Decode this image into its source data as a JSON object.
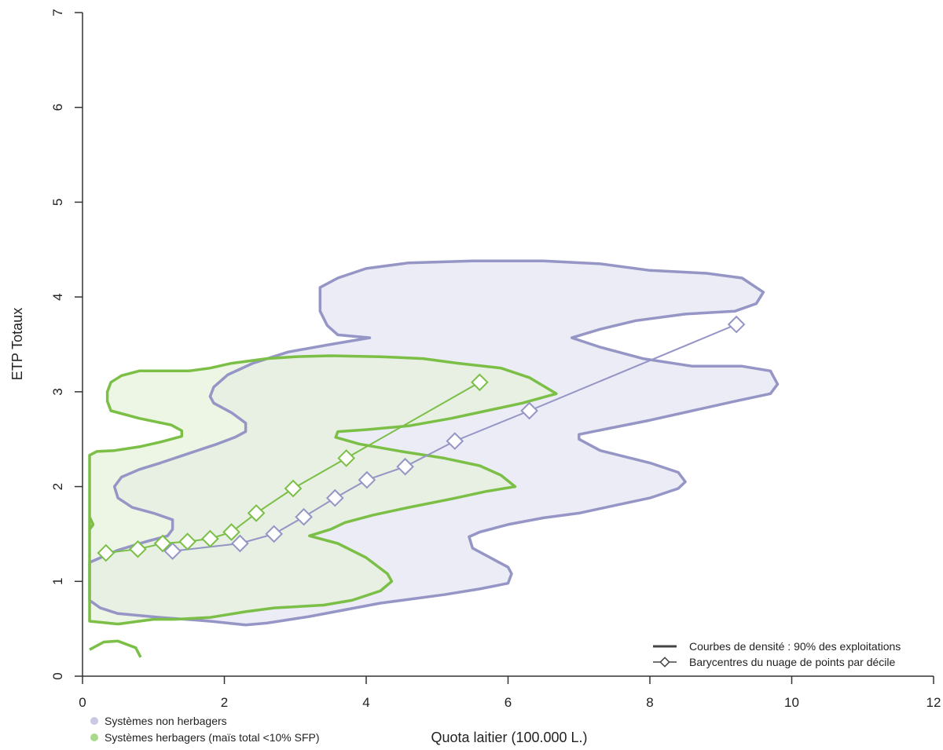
{
  "chart_data": {
    "type": "scatter",
    "xlabel": "Quota laitier (100.000 L.)",
    "ylabel": "ETP Totaux",
    "xlim": [
      0,
      12
    ],
    "ylim": [
      0,
      7
    ],
    "xticks": [
      0,
      2,
      4,
      6,
      8,
      10,
      12
    ],
    "yticks": [
      0,
      1,
      2,
      3,
      4,
      5,
      6,
      7
    ],
    "grid": false,
    "colors": {
      "non_herbagers_line": "#9595c6",
      "non_herbagers_fill": "#ececf6",
      "herbagers_line": "#7bbf47",
      "herbagers_fill": "#e6f2da",
      "overlap_fill": "#dfe6dc",
      "axis": "#333333"
    },
    "series": [
      {
        "name": "Systèmes non herbagers",
        "key": "non_herbagers",
        "barycentres": {
          "x": [
            1.27,
            2.22,
            2.7,
            3.12,
            3.56,
            4.01,
            4.55,
            5.25,
            6.3,
            9.22
          ],
          "y": [
            1.32,
            1.4,
            1.5,
            1.68,
            1.88,
            2.07,
            2.21,
            2.48,
            2.8,
            3.71
          ]
        },
        "density_contours": [
          [
            [
              0.1,
              1.2
            ],
            [
              0.5,
              1.33
            ],
            [
              0.9,
              1.42
            ],
            [
              1.2,
              1.48
            ],
            [
              1.27,
              1.55
            ],
            [
              1.27,
              1.65
            ],
            [
              1.0,
              1.72
            ],
            [
              0.7,
              1.78
            ],
            [
              0.5,
              1.88
            ],
            [
              0.45,
              2.0
            ],
            [
              0.55,
              2.1
            ],
            [
              0.8,
              2.18
            ],
            [
              1.1,
              2.25
            ],
            [
              1.5,
              2.35
            ],
            [
              1.9,
              2.45
            ],
            [
              2.15,
              2.52
            ],
            [
              2.3,
              2.58
            ],
            [
              2.3,
              2.67
            ],
            [
              2.1,
              2.78
            ],
            [
              1.85,
              2.88
            ],
            [
              1.8,
              2.95
            ],
            [
              1.85,
              3.05
            ],
            [
              2.05,
              3.18
            ],
            [
              2.4,
              3.3
            ],
            [
              2.9,
              3.42
            ],
            [
              3.5,
              3.5
            ],
            [
              4.05,
              3.57
            ],
            [
              3.6,
              3.6
            ],
            [
              3.45,
              3.7
            ],
            [
              3.35,
              3.85
            ],
            [
              3.35,
              4.1
            ],
            [
              3.6,
              4.2
            ],
            [
              4.0,
              4.3
            ],
            [
              4.6,
              4.36
            ],
            [
              5.5,
              4.38
            ],
            [
              6.5,
              4.38
            ],
            [
              7.3,
              4.35
            ],
            [
              8.0,
              4.28
            ],
            [
              8.8,
              4.25
            ],
            [
              9.3,
              4.2
            ],
            [
              9.6,
              4.05
            ],
            [
              9.5,
              3.93
            ],
            [
              9.2,
              3.85
            ],
            [
              8.5,
              3.82
            ],
            [
              7.8,
              3.75
            ],
            [
              7.3,
              3.66
            ],
            [
              6.9,
              3.57
            ],
            [
              7.3,
              3.47
            ],
            [
              7.9,
              3.35
            ],
            [
              8.6,
              3.27
            ],
            [
              9.3,
              3.27
            ],
            [
              9.7,
              3.22
            ],
            [
              9.8,
              3.08
            ],
            [
              9.7,
              2.98
            ],
            [
              9.2,
              2.9
            ],
            [
              8.6,
              2.8
            ],
            [
              8.0,
              2.7
            ],
            [
              7.4,
              2.61
            ],
            [
              7.0,
              2.55
            ],
            [
              7.0,
              2.5
            ],
            [
              7.3,
              2.38
            ],
            [
              8.0,
              2.25
            ],
            [
              8.4,
              2.15
            ],
            [
              8.5,
              2.05
            ],
            [
              8.4,
              1.98
            ],
            [
              8.0,
              1.88
            ],
            [
              7.5,
              1.8
            ],
            [
              7.0,
              1.72
            ],
            [
              6.5,
              1.67
            ],
            [
              6.0,
              1.6
            ],
            [
              5.6,
              1.52
            ],
            [
              5.45,
              1.47
            ],
            [
              5.5,
              1.35
            ],
            [
              5.75,
              1.25
            ],
            [
              6.0,
              1.15
            ],
            [
              6.05,
              1.08
            ],
            [
              6.0,
              0.98
            ],
            [
              5.6,
              0.92
            ],
            [
              5.1,
              0.86
            ],
            [
              4.7,
              0.82
            ],
            [
              4.2,
              0.77
            ],
            [
              3.7,
              0.7
            ],
            [
              3.2,
              0.63
            ],
            [
              2.6,
              0.56
            ],
            [
              2.3,
              0.54
            ],
            [
              1.8,
              0.58
            ],
            [
              1.1,
              0.62
            ],
            [
              0.5,
              0.66
            ],
            [
              0.25,
              0.72
            ],
            [
              0.1,
              0.8
            ]
          ]
        ]
      },
      {
        "name": "Systèmes herbagers (maïs total <10% SFP)",
        "key": "herbagers",
        "barycentres": {
          "x": [
            0.33,
            0.78,
            1.13,
            1.48,
            1.8,
            2.1,
            2.45,
            2.97,
            3.72,
            5.6
          ],
          "y": [
            1.3,
            1.34,
            1.4,
            1.42,
            1.45,
            1.52,
            1.72,
            1.98,
            2.3,
            3.1
          ]
        },
        "density_contours": [
          [
            [
              0.1,
              2.33
            ],
            [
              0.2,
              2.37
            ],
            [
              0.45,
              2.38
            ],
            [
              0.8,
              2.42
            ],
            [
              1.1,
              2.47
            ],
            [
              1.4,
              2.53
            ],
            [
              1.4,
              2.59
            ],
            [
              1.25,
              2.65
            ],
            [
              0.8,
              2.72
            ],
            [
              0.4,
              2.8
            ],
            [
              0.35,
              2.9
            ],
            [
              0.35,
              3.0
            ],
            [
              0.4,
              3.1
            ],
            [
              0.55,
              3.17
            ],
            [
              0.8,
              3.22
            ],
            [
              1.5,
              3.22
            ],
            [
              1.8,
              3.25
            ],
            [
              2.1,
              3.3
            ],
            [
              2.6,
              3.35
            ],
            [
              3.0,
              3.37
            ],
            [
              3.5,
              3.38
            ],
            [
              4.2,
              3.37
            ],
            [
              4.8,
              3.35
            ],
            [
              5.3,
              3.3
            ],
            [
              5.9,
              3.25
            ],
            [
              6.3,
              3.15
            ],
            [
              6.68,
              2.98
            ],
            [
              6.2,
              2.88
            ],
            [
              5.7,
              2.8
            ],
            [
              5.2,
              2.72
            ],
            [
              4.6,
              2.64
            ],
            [
              4.0,
              2.6
            ],
            [
              3.6,
              2.58
            ],
            [
              3.57,
              2.52
            ],
            [
              3.9,
              2.45
            ],
            [
              4.5,
              2.37
            ],
            [
              5.1,
              2.3
            ],
            [
              5.6,
              2.22
            ],
            [
              5.9,
              2.12
            ],
            [
              6.1,
              2.0
            ],
            [
              5.7,
              1.95
            ],
            [
              5.2,
              1.87
            ],
            [
              4.6,
              1.78
            ],
            [
              4.1,
              1.7
            ],
            [
              3.7,
              1.62
            ],
            [
              3.5,
              1.55
            ],
            [
              3.2,
              1.48
            ],
            [
              3.6,
              1.4
            ],
            [
              4.0,
              1.25
            ],
            [
              4.3,
              1.08
            ],
            [
              4.36,
              1.0
            ],
            [
              4.2,
              0.9
            ],
            [
              3.8,
              0.8
            ],
            [
              3.4,
              0.75
            ],
            [
              2.7,
              0.72
            ],
            [
              2.3,
              0.68
            ],
            [
              1.8,
              0.62
            ],
            [
              1.3,
              0.6
            ],
            [
              1.0,
              0.6
            ],
            [
              0.5,
              0.55
            ],
            [
              0.1,
              0.58
            ]
          ],
          [
            [
              0.1,
              1.68
            ],
            [
              0.15,
              1.6
            ],
            [
              0.1,
              1.55
            ]
          ],
          [
            [
              0.1,
              0.28
            ],
            [
              0.3,
              0.36
            ],
            [
              0.5,
              0.37
            ],
            [
              0.75,
              0.3
            ],
            [
              0.82,
              0.2
            ]
          ]
        ]
      }
    ],
    "legend_items": [
      {
        "label": "Courbes de densité : 90% des exploitations",
        "symbol": "line"
      },
      {
        "label": "Barycentres du nuage de points par décile",
        "symbol": "line-diamond"
      }
    ],
    "legend_position": "bottom-right",
    "series_legend_position": "bottom-left"
  }
}
